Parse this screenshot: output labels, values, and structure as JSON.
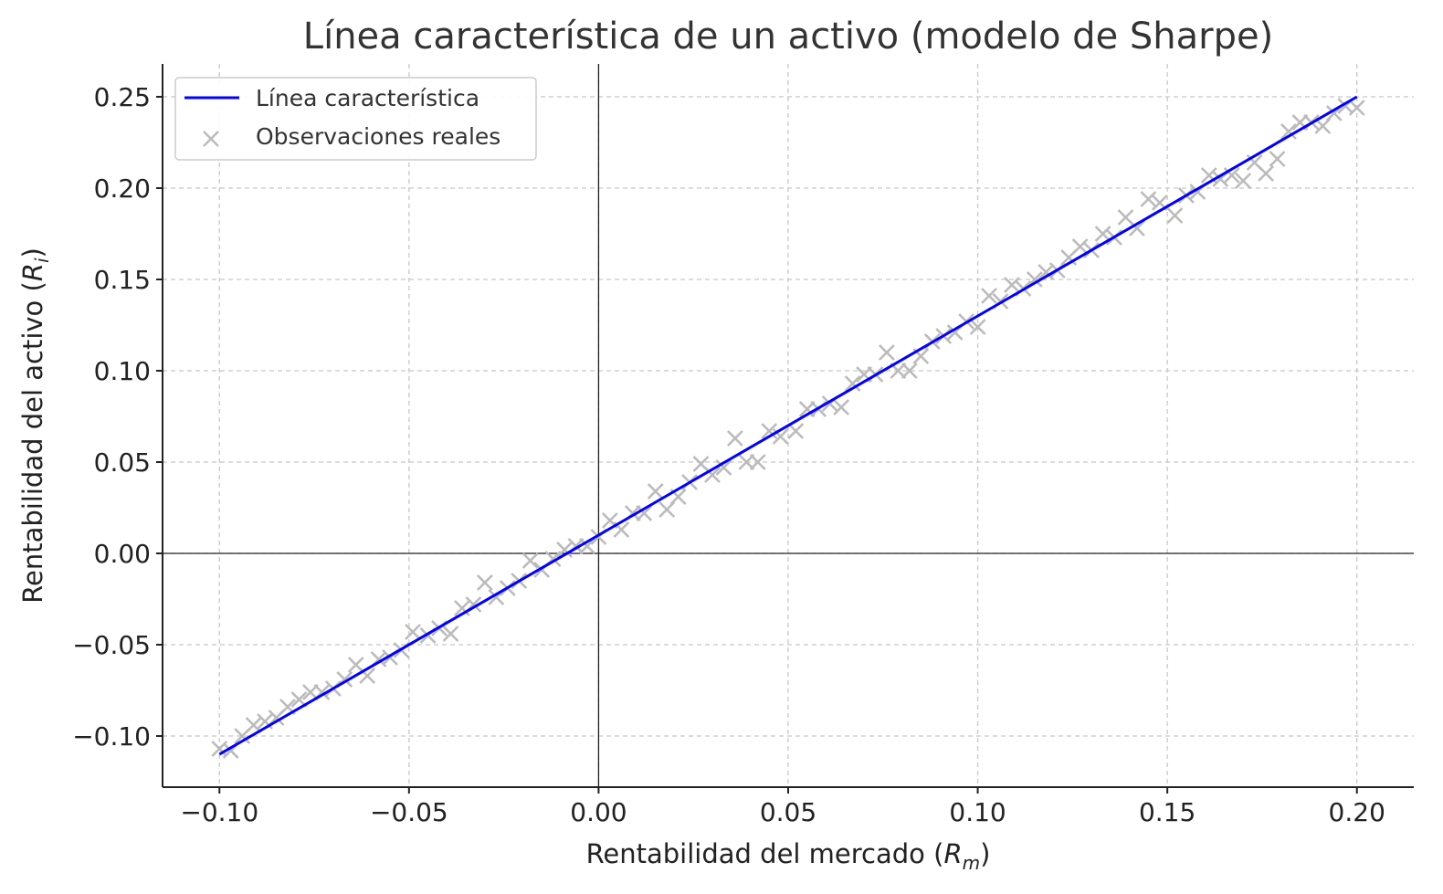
{
  "chart_data": {
    "type": "line",
    "title": "Línea característica de un activo (modelo de Sharpe)",
    "xlabel": {
      "main": "Rentabilidad del mercado (",
      "var": "R",
      "sub": "m",
      "close": ")"
    },
    "ylabel": {
      "main": "Rentabilidad del activo (",
      "var": "R",
      "sub": "i",
      "close": ")"
    },
    "xlim": [
      -0.115,
      0.215
    ],
    "ylim": [
      -0.128,
      0.268
    ],
    "xticks": [
      -0.1,
      -0.05,
      0.0,
      0.05,
      0.1,
      0.15,
      0.2
    ],
    "yticks": [
      -0.1,
      -0.05,
      0.0,
      0.05,
      0.1,
      0.15,
      0.2,
      0.25
    ],
    "xtick_labels": [
      "−0.10",
      "−0.05",
      "0.00",
      "0.05",
      "0.10",
      "0.15",
      "0.20"
    ],
    "ytick_labels": [
      "−0.10",
      "−0.05",
      "0.00",
      "0.05",
      "0.10",
      "0.15",
      "0.20",
      "0.25"
    ],
    "grid": true,
    "legend_position": "upper-left",
    "series": [
      {
        "name": "Línea característica",
        "kind": "line",
        "color": "#0000ff",
        "x": [
          -0.1,
          0.2
        ],
        "y": [
          -0.11,
          0.25
        ]
      },
      {
        "name": "Observaciones reales",
        "kind": "scatter",
        "marker": "x",
        "color": "#bbbbbb",
        "x": [
          -0.1,
          -0.097,
          -0.094,
          -0.091,
          -0.088,
          -0.085,
          -0.082,
          -0.079,
          -0.076,
          -0.073,
          -0.07,
          -0.067,
          -0.064,
          -0.061,
          -0.058,
          -0.055,
          -0.052,
          -0.049,
          -0.045,
          -0.042,
          -0.039,
          -0.036,
          -0.033,
          -0.03,
          -0.027,
          -0.024,
          -0.021,
          -0.018,
          -0.015,
          -0.012,
          -0.009,
          -0.006,
          -0.003,
          0.0,
          0.003,
          0.006,
          0.009,
          0.012,
          0.015,
          0.018,
          0.021,
          0.024,
          0.027,
          0.03,
          0.033,
          0.036,
          0.039,
          0.042,
          0.045,
          0.048,
          0.052,
          0.055,
          0.058,
          0.061,
          0.064,
          0.067,
          0.07,
          0.073,
          0.076,
          0.079,
          0.082,
          0.085,
          0.088,
          0.091,
          0.094,
          0.097,
          0.1,
          0.103,
          0.106,
          0.109,
          0.112,
          0.115,
          0.118,
          0.121,
          0.124,
          0.127,
          0.13,
          0.133,
          0.136,
          0.139,
          0.142,
          0.145,
          0.148,
          0.152,
          0.155,
          0.158,
          0.161,
          0.164,
          0.167,
          0.17,
          0.173,
          0.176,
          0.179,
          0.182,
          0.185,
          0.188,
          0.191,
          0.194,
          0.197,
          0.2
        ],
        "y": [
          -0.107,
          -0.108,
          -0.1,
          -0.094,
          -0.092,
          -0.09,
          -0.084,
          -0.08,
          -0.076,
          -0.076,
          -0.074,
          -0.069,
          -0.061,
          -0.067,
          -0.058,
          -0.057,
          -0.053,
          -0.043,
          -0.045,
          -0.041,
          -0.044,
          -0.03,
          -0.028,
          -0.016,
          -0.024,
          -0.019,
          -0.015,
          -0.004,
          -0.009,
          -0.003,
          0.002,
          0.004,
          0.004,
          0.009,
          0.018,
          0.013,
          0.022,
          0.022,
          0.034,
          0.024,
          0.031,
          0.039,
          0.049,
          0.043,
          0.047,
          0.063,
          0.05,
          0.05,
          0.067,
          0.064,
          0.067,
          0.079,
          0.079,
          0.082,
          0.08,
          0.093,
          0.098,
          0.098,
          0.11,
          0.1,
          0.1,
          0.108,
          0.116,
          0.119,
          0.121,
          0.127,
          0.124,
          0.141,
          0.138,
          0.147,
          0.145,
          0.15,
          0.154,
          0.155,
          0.162,
          0.168,
          0.166,
          0.175,
          0.173,
          0.184,
          0.178,
          0.194,
          0.192,
          0.185,
          0.196,
          0.198,
          0.207,
          0.205,
          0.207,
          0.204,
          0.214,
          0.208,
          0.216,
          0.231,
          0.236,
          0.236,
          0.234,
          0.241,
          0.245,
          0.244
        ]
      }
    ]
  }
}
